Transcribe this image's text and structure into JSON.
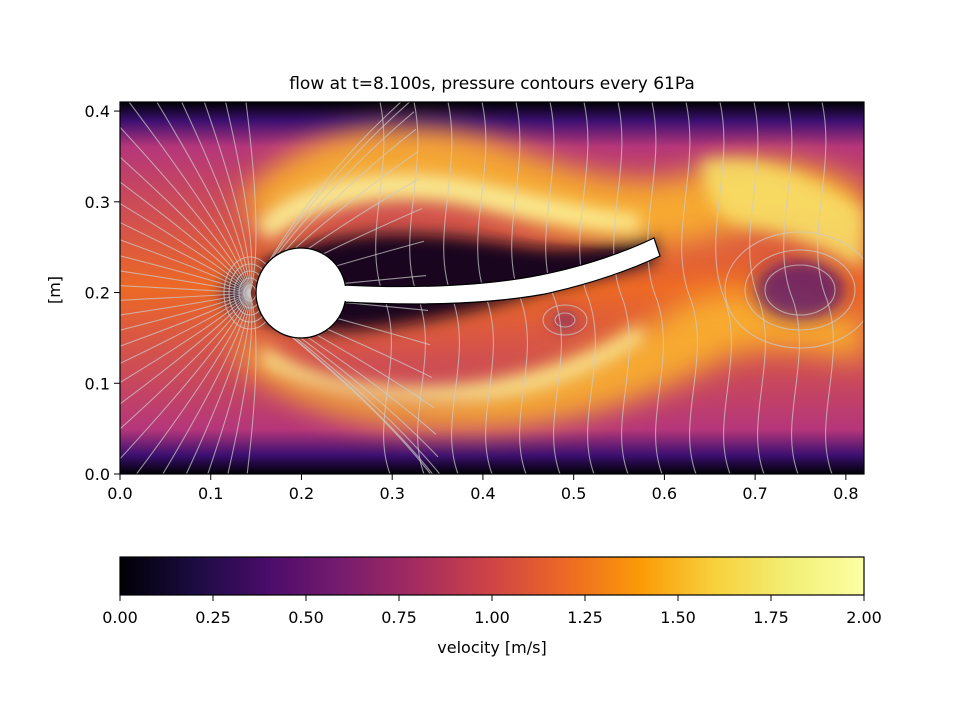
{
  "chart_data": [
    {
      "type": "heatmap",
      "title": "flow at t=8.100s, pressure contours every 61Pa",
      "xlabel": "",
      "ylabel": "[m]",
      "xlim": [
        0.0,
        0.82
      ],
      "ylim": [
        0.0,
        0.41
      ],
      "x_ticks": [
        "0.0",
        "0.1",
        "0.2",
        "0.3",
        "0.4",
        "0.5",
        "0.6",
        "0.7",
        "0.8"
      ],
      "x_tick_values": [
        0.0,
        0.1,
        0.2,
        0.3,
        0.4,
        0.5,
        0.6,
        0.7,
        0.8
      ],
      "y_ticks": [
        "0.0",
        "0.1",
        "0.2",
        "0.3",
        "0.4"
      ],
      "y_tick_values": [
        0.0,
        0.1,
        0.2,
        0.3,
        0.4
      ],
      "colormap": "inferno",
      "color_range": [
        0.0,
        2.0
      ],
      "obstacle": {
        "cylinder_center": [
          0.2,
          0.2
        ],
        "cylinder_radius": 0.05,
        "flag_tip": [
          0.59,
          0.25
        ],
        "flag_thickness": 0.02
      },
      "contour_color": "#cccccc"
    },
    {
      "type": "colorbar",
      "label": "velocity [m/s]",
      "range": [
        0.0,
        2.0
      ],
      "ticks": [
        "0.00",
        "0.25",
        "0.50",
        "0.75",
        "1.00",
        "1.25",
        "1.50",
        "1.75",
        "2.00"
      ],
      "tick_values": [
        0.0,
        0.25,
        0.5,
        0.75,
        1.0,
        1.25,
        1.5,
        1.75,
        2.0
      ],
      "orientation": "horizontal",
      "colormap": "inferno"
    }
  ]
}
